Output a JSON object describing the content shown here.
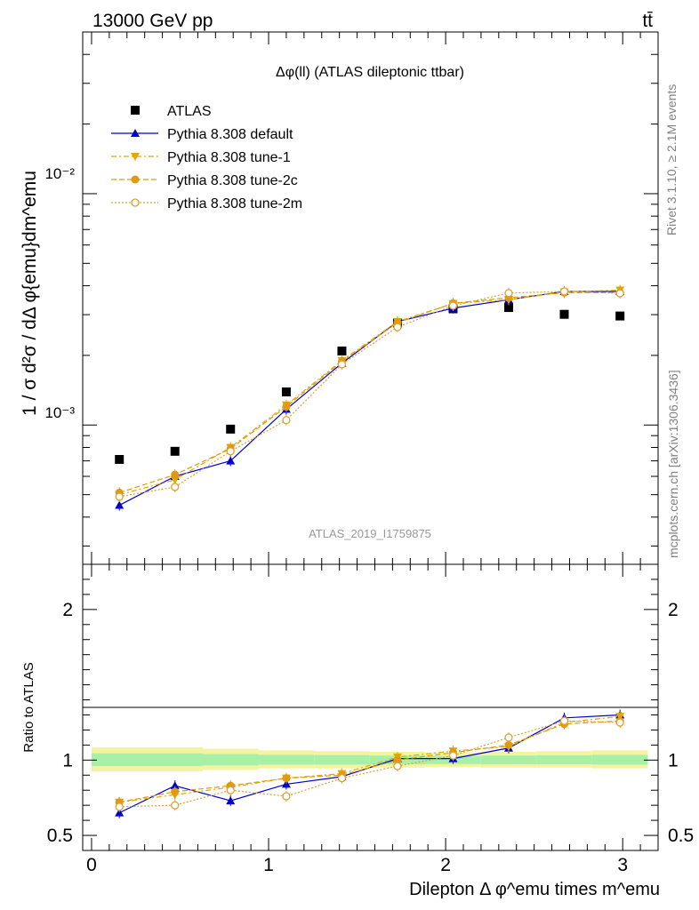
{
  "header": {
    "energy_label": "13000 GeV pp",
    "process_label": "tt̄"
  },
  "side_labels": {
    "rivet": "Rivet 3.1.10, ≥ 2.1M events",
    "mcplots": "mcplots.cern.ch [arXiv:1306.3436]"
  },
  "chart_data": [
    {
      "type": "scatter",
      "panel": "main",
      "title": "Δφ(ll) (ATLAS dileptonic ttbar)",
      "watermark": "ATLAS_2019_I1759875",
      "ylabel": "1 / σ d²σ / dΔ φ{emu}dm^emu",
      "yscale": "log",
      "ylim": [
        0.00025,
        0.05
      ],
      "xlim": [
        -0.05,
        3.2
      ],
      "y_tick_labels": [
        "10⁻³",
        "10⁻²"
      ],
      "grid": false,
      "legend_position": "top-left",
      "x": [
        0.157,
        0.471,
        0.785,
        1.1,
        1.414,
        1.728,
        2.042,
        2.356,
        2.67,
        2.985
      ],
      "series": [
        {
          "name": "ATLAS",
          "color": "#000000",
          "marker": "square",
          "line": "none",
          "values": [
            0.00071,
            0.00077,
            0.00096,
            0.00139,
            0.00209,
            0.00276,
            0.00318,
            0.00322,
            0.00301,
            0.00296
          ]
        },
        {
          "name": "Pythia 8.308 default",
          "color": "#0000cc",
          "marker": "triangle-up",
          "line": "solid",
          "values": [
            0.00045,
            0.0006,
            0.0007,
            0.00117,
            0.00185,
            0.0028,
            0.0032,
            0.00348,
            0.00378,
            0.00378
          ]
        },
        {
          "name": "Pythia 8.308 tune-1",
          "color": "#e0a800",
          "marker": "triangle-down",
          "line": "dashdot",
          "values": [
            0.0005,
            0.00058,
            0.0008,
            0.00122,
            0.0019,
            0.0028,
            0.00335,
            0.00348,
            0.00376,
            0.00383
          ]
        },
        {
          "name": "Pythia 8.308 tune-2c",
          "color": "#e09a10",
          "marker": "circle",
          "line": "dashed",
          "values": [
            0.00051,
            0.00061,
            0.00079,
            0.0012,
            0.00188,
            0.00277,
            0.00336,
            0.00355,
            0.00373,
            0.00374
          ]
        },
        {
          "name": "Pythia 8.308 tune-2m",
          "color": "#e0a030",
          "marker": "circle-open",
          "line": "dotted",
          "values": [
            0.00049,
            0.00054,
            0.00077,
            0.00105,
            0.00183,
            0.00265,
            0.00328,
            0.00372,
            0.00378,
            0.00371
          ]
        }
      ]
    },
    {
      "type": "scatter",
      "panel": "ratio",
      "ylabel": "Ratio to ATLAS",
      "xlabel": "Dilepton Δ φ^emu times m^emu",
      "ylim": [
        0.4,
        2.3
      ],
      "xlim": [
        -0.05,
        3.2
      ],
      "y_ticks": [
        0.5,
        1,
        2
      ],
      "y_tick_labels": [
        "0.5",
        "1",
        "2"
      ],
      "x_ticks": [
        0,
        1,
        2,
        3
      ],
      "x_tick_labels": [
        "0",
        "1",
        "2",
        "3"
      ],
      "uncertainty_band": {
        "x_edges": [
          0,
          0.314,
          0.628,
          0.942,
          1.257,
          1.571,
          1.885,
          2.199,
          2.513,
          2.827,
          3.142
        ],
        "outer": [
          [
            0.925,
            1.085
          ],
          [
            0.925,
            1.085
          ],
          [
            0.935,
            1.075
          ],
          [
            0.945,
            1.065
          ],
          [
            0.945,
            1.06
          ],
          [
            0.95,
            1.055
          ],
          [
            0.955,
            1.05
          ],
          [
            0.95,
            1.055
          ],
          [
            0.95,
            1.06
          ],
          [
            0.945,
            1.065
          ]
        ],
        "inner": [
          [
            0.96,
            1.045
          ],
          [
            0.96,
            1.045
          ],
          [
            0.965,
            1.04
          ],
          [
            0.97,
            1.035
          ],
          [
            0.97,
            1.033
          ],
          [
            0.972,
            1.03
          ],
          [
            0.974,
            1.028
          ],
          [
            0.972,
            1.03
          ],
          [
            0.972,
            1.032
          ],
          [
            0.97,
            1.035
          ]
        ],
        "outer_color": "#f4f4a0",
        "inner_color": "#a8f0a8"
      },
      "series": [
        {
          "name": "Pythia 8.308 default",
          "color": "#0000cc",
          "marker": "triangle-up",
          "line": "solid",
          "values": [
            0.65,
            0.83,
            0.73,
            0.84,
            0.89,
            1.01,
            1.01,
            1.08,
            1.28,
            1.3
          ]
        },
        {
          "name": "Pythia 8.308 tune-1",
          "color": "#e0a800",
          "marker": "triangle-down",
          "line": "dashdot",
          "values": [
            0.72,
            0.77,
            0.82,
            0.88,
            0.91,
            1.02,
            1.06,
            1.09,
            1.25,
            1.29
          ]
        },
        {
          "name": "Pythia 8.308 tune-2c",
          "color": "#e09a10",
          "marker": "circle",
          "line": "dashed",
          "values": [
            0.72,
            0.79,
            0.83,
            0.88,
            0.9,
            1.0,
            1.05,
            1.1,
            1.24,
            1.26
          ]
        },
        {
          "name": "Pythia 8.308 tune-2m",
          "color": "#e0a030",
          "marker": "circle-open",
          "line": "dotted",
          "values": [
            0.69,
            0.7,
            0.8,
            0.76,
            0.88,
            0.96,
            1.03,
            1.15,
            1.26,
            1.25
          ]
        }
      ]
    }
  ]
}
